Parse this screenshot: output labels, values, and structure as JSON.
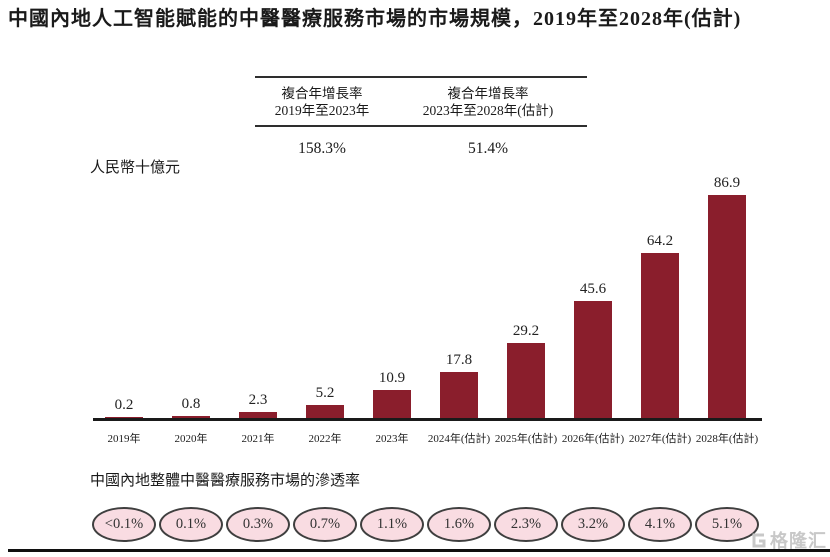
{
  "page": {
    "title": "中國內地人工智能賦能的中醫醫療服務市場的市場規模，2019年至2028年(估計)",
    "unit_label": "人民幣十億元",
    "penetration_title": "中國內地整體中醫醫療服務市場的滲透率",
    "watermark_text": "格隆汇"
  },
  "cagr_table": {
    "columns": [
      {
        "header_line1": "複合年增長率",
        "header_line2": "2019年至2023年",
        "value": "158.3%"
      },
      {
        "header_line1": "複合年增長率",
        "header_line2": "2023年至2028年(估計)",
        "value": "51.4%"
      }
    ]
  },
  "chart_data": {
    "type": "bar",
    "title": "中國內地人工智能賦能的中醫醫療服務市場的市場規模，2019年至2028年(估計)",
    "ylabel": "人民幣十億元",
    "xlabel": "",
    "ylim": [
      0,
      90
    ],
    "grid": false,
    "categories": [
      "2019年",
      "2020年",
      "2021年",
      "2022年",
      "2023年",
      "2024年(估計)",
      "2025年(估計)",
      "2026年(估計)",
      "2027年(估計)",
      "2028年(估計)"
    ],
    "values": [
      0.2,
      0.8,
      2.3,
      5.2,
      10.9,
      17.8,
      29.2,
      45.6,
      64.2,
      86.9
    ],
    "bar_color": "#8a1e2c",
    "cagr_2019_2023": "158.3%",
    "cagr_2023_2028": "51.4%",
    "penetration_series": {
      "label": "中國內地整體中醫醫療服務市場的滲透率",
      "values": [
        "<0.1%",
        "0.1%",
        "0.3%",
        "0.7%",
        "1.1%",
        "1.6%",
        "2.3%",
        "3.2%",
        "4.1%",
        "5.1%"
      ],
      "bubble_fill": "#f9dce2",
      "bubble_border": "#3f3f3f"
    }
  }
}
